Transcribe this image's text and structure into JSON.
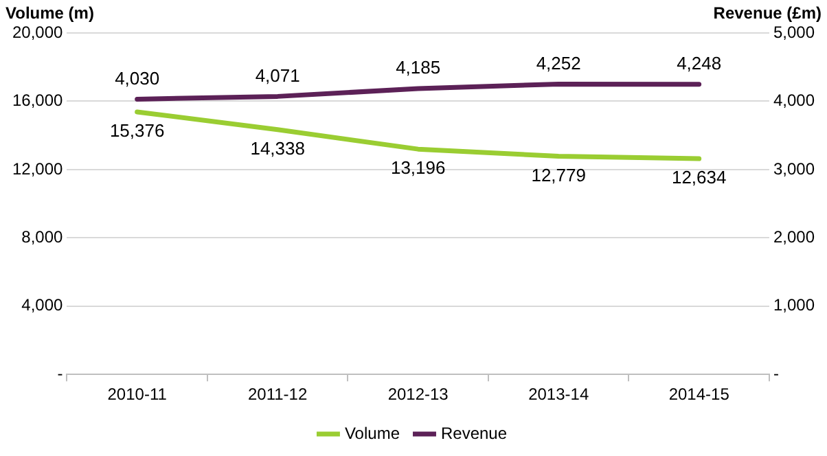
{
  "chart_data": {
    "type": "line",
    "ylabel": "Volume (m)",
    "y2label": "Revenue (£m)",
    "categories": [
      "2010-11",
      "2011-12",
      "2012-13",
      "2013-14",
      "2014-15"
    ],
    "series": [
      {
        "name": "Volume",
        "color": "#9acd32",
        "values": [
          15376,
          14338,
          13196,
          12779,
          12634
        ],
        "value_labels": [
          "15,376",
          "14,338",
          "13,196",
          "12,779",
          "12,634"
        ]
      },
      {
        "name": "Revenue",
        "color": "#5c2157",
        "axis": "y2",
        "values": [
          4030,
          4071,
          4185,
          4252,
          4248
        ],
        "value_labels": [
          "4,030",
          "4,071",
          "4,185",
          "4,252",
          "4,248"
        ]
      }
    ],
    "ylim": [
      0,
      20000
    ],
    "yticks": [
      {
        "value": 0,
        "label": "-"
      },
      {
        "value": 4000,
        "label": "4,000"
      },
      {
        "value": 8000,
        "label": "8,000"
      },
      {
        "value": 12000,
        "label": "12,000"
      },
      {
        "value": 16000,
        "label": "16,000"
      },
      {
        "value": 20000,
        "label": "20,000"
      }
    ],
    "y2lim": [
      0,
      5000
    ],
    "y2ticks": [
      {
        "value": 0,
        "label": "-"
      },
      {
        "value": 1000,
        "label": "1,000"
      },
      {
        "value": 2000,
        "label": "2,000"
      },
      {
        "value": 3000,
        "label": "3,000"
      },
      {
        "value": 4000,
        "label": "4,000"
      },
      {
        "value": 5000,
        "label": "5,000"
      }
    ],
    "grid": "y",
    "legend": "bottom",
    "marker": "none",
    "line_style": "solid"
  }
}
